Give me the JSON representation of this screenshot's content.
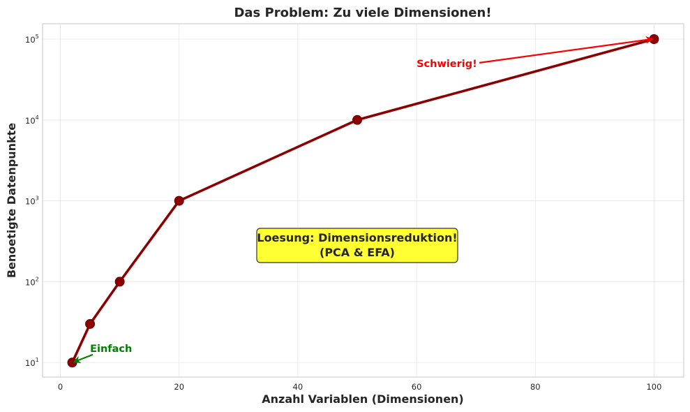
{
  "chart_data": {
    "type": "line",
    "title": "Das Problem: Zu viele Dimensionen!",
    "xlabel": "Anzahl Variablen (Dimensionen)",
    "ylabel": "Benoetigte Datenpunkte",
    "xlim": [
      -3,
      105
    ],
    "ylim_log10": [
      0.82,
      5.19
    ],
    "yscale": "log",
    "grid": true,
    "x_ticks": [
      0,
      20,
      40,
      60,
      80,
      100
    ],
    "y_ticks_exponent": [
      1,
      2,
      3,
      4,
      5
    ],
    "y_tick_base": "10",
    "series": [
      {
        "color": "#8b0000",
        "x": [
          2,
          5,
          10,
          20,
          50,
          100
        ],
        "y": [
          10,
          30,
          100,
          1000,
          10000,
          100000
        ]
      }
    ],
    "annotations": [
      {
        "text": "Einfach",
        "color": "#008000",
        "text_xy": [
          5,
          15
        ],
        "target_xy": [
          2,
          10
        ]
      },
      {
        "text": "Schwierig!",
        "color": "#ff0000",
        "text_xy": [
          60,
          50000
        ],
        "target_xy": [
          100,
          100000
        ]
      }
    ],
    "textbox": {
      "lines": [
        "Loesung: Dimensionsreduktion!",
        "(PCA & EFA)"
      ],
      "background": "#ffff33"
    }
  }
}
